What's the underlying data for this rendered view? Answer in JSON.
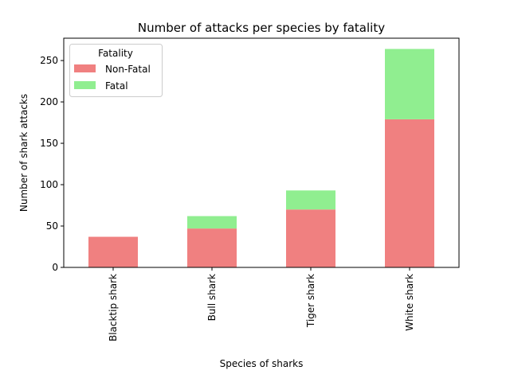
{
  "chart_data": {
    "type": "bar",
    "stacked": true,
    "title": "Number of attacks per species by fatality",
    "xlabel": "Species of sharks",
    "ylabel": "Number of shark attacks",
    "categories": [
      "Blacktip shark",
      "Bull shark",
      "Tiger shark",
      "White shark"
    ],
    "series": [
      {
        "name": "Non-Fatal",
        "values": [
          37,
          47,
          70,
          179
        ],
        "color": "#f08080"
      },
      {
        "name": "Fatal",
        "values": [
          0,
          15,
          23,
          85
        ],
        "color": "#90ee90"
      }
    ],
    "ylim": [
      0,
      277
    ],
    "yticks": [
      0,
      50,
      100,
      150,
      200,
      250
    ],
    "legend": {
      "title": "Fatality",
      "placement": "top-left"
    },
    "grid": false
  }
}
